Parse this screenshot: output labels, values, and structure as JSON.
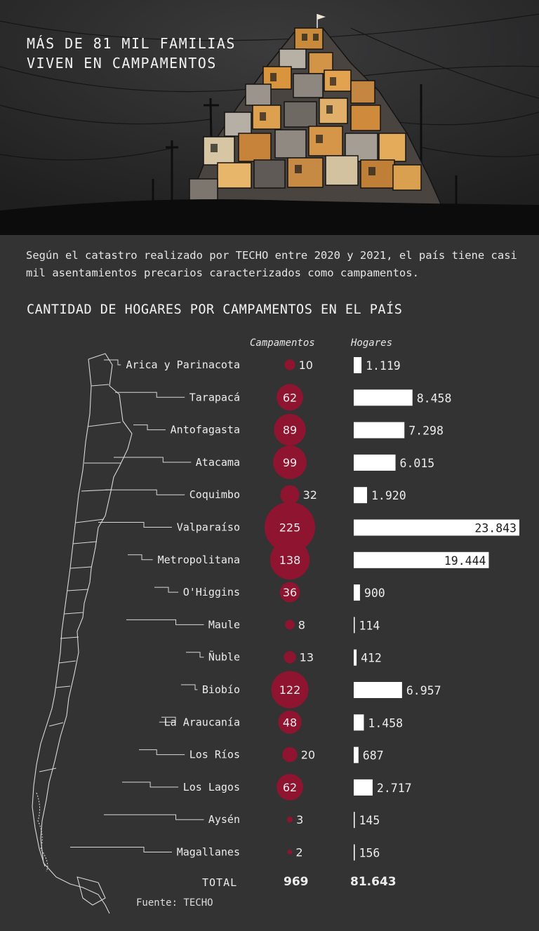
{
  "header": {
    "title_line1": "MÁS DE 81 MIL FAMILIAS",
    "title_line2": "VIVEN EN CAMPAMENTOS"
  },
  "intro": "Según el catastro realizado por TECHO entre 2020 y 2021, el país tiene casi mil asentamientos precarios caracterizados como campamentos.",
  "chart_data": {
    "type": "bar",
    "title": "CANTIDAD DE HOGARES POR CAMPAMENTOS EN EL PAÍS",
    "column_campamentos": "Campamentos",
    "column_hogares": "Hogares",
    "categories": [
      "Arica y Parinacota",
      "Tarapacá",
      "Antofagasta",
      "Atacama",
      "Coquimbo",
      "Valparaíso",
      "Metropolitana",
      "O'Higgins",
      "Maule",
      "Ñuble",
      "Biobío",
      "La Araucanía",
      "Los Ríos",
      "Los Lagos",
      "Aysén",
      "Magallanes"
    ],
    "series": [
      {
        "name": "Campamentos",
        "values": [
          10,
          62,
          89,
          99,
          32,
          225,
          138,
          36,
          8,
          13,
          122,
          48,
          20,
          62,
          3,
          2
        ]
      },
      {
        "name": "Hogares",
        "values": [
          1119,
          8458,
          7298,
          6015,
          1920,
          23843,
          19444,
          900,
          114,
          412,
          6957,
          1458,
          687,
          2717,
          145,
          156
        ]
      }
    ],
    "campamentos_labels": [
      "10",
      "62",
      "89",
      "99",
      "32",
      "225",
      "138",
      "36",
      "8",
      "13",
      "122",
      "48",
      "20",
      "62",
      "3",
      "2"
    ],
    "hogares_labels": [
      "1.119",
      "8.458",
      "7.298",
      "6.015",
      "1.920",
      "23.843",
      "19.444",
      "900",
      "114",
      "412",
      "6.957",
      "1.458",
      "687",
      "2.717",
      "145",
      "156"
    ],
    "total_label": "TOTAL",
    "total_campamentos": "969",
    "total_hogares": "81.643",
    "bubble_color": "#8e1430",
    "bar_color": "#ffffff"
  },
  "source": "Fuente: TECHO"
}
